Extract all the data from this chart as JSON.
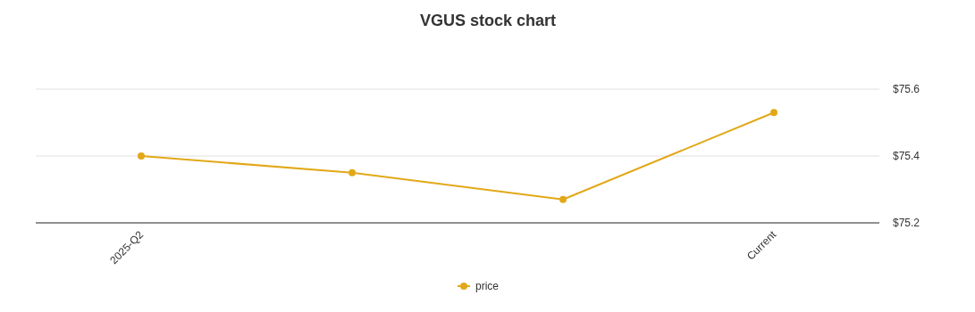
{
  "chart_data": {
    "type": "line",
    "title": "VGUS stock chart",
    "categories": [
      "2025-Q2",
      null,
      null,
      "Current"
    ],
    "series": [
      {
        "name": "price",
        "color": "#e2a818",
        "values": [
          75.4,
          75.35,
          75.27,
          75.53
        ]
      }
    ],
    "ylim": [
      75.2,
      75.6
    ],
    "yticks": [
      {
        "value": 75.2,
        "label": "$75.2"
      },
      {
        "value": 75.4,
        "label": "$75.4"
      },
      {
        "value": 75.6,
        "label": "$75.6"
      }
    ],
    "grid": "y",
    "legend": "bottom",
    "marker": "circle",
    "line_style": "solid"
  }
}
